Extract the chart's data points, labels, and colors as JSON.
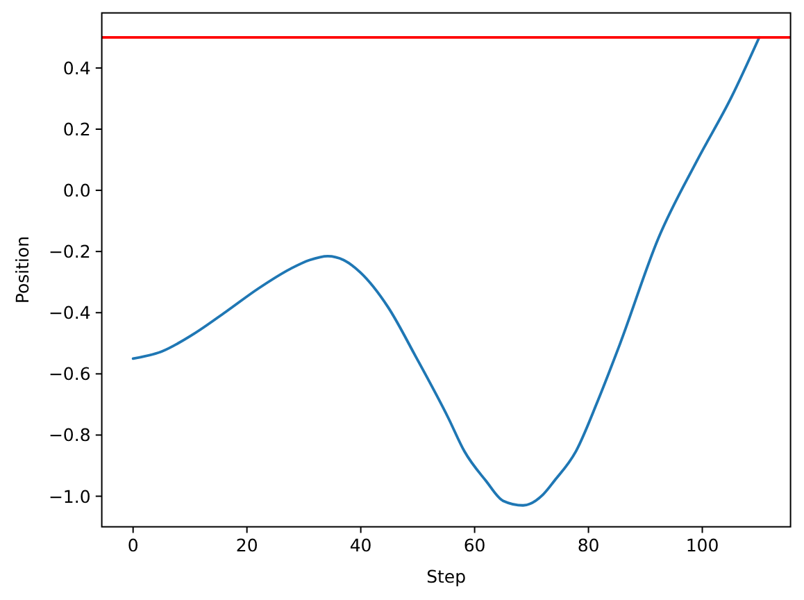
{
  "chart_data": {
    "type": "line",
    "xlabel": "Step",
    "ylabel": "Position",
    "xlim": [
      -5.5,
      115.5
    ],
    "ylim": [
      -1.1,
      0.58
    ],
    "xticks": [
      0,
      20,
      40,
      60,
      80,
      100
    ],
    "yticks": [
      {
        "value": -1.0,
        "label": "−1.0"
      },
      {
        "value": -0.8,
        "label": "−0.8"
      },
      {
        "value": -0.6,
        "label": "−0.6"
      },
      {
        "value": -0.4,
        "label": "−0.4"
      },
      {
        "value": -0.2,
        "label": "−0.2"
      },
      {
        "value": 0.0,
        "label": "0.0"
      },
      0.2,
      0.4
    ],
    "series": [
      {
        "color": "#1f77b4",
        "x": [
          0,
          5,
          10.6,
          16.3,
          22,
          27.7,
          31,
          34.2,
          37,
          39.9,
          44.8,
          49.7,
          55.4,
          58.2,
          62,
          65,
          68.5,
          72,
          74,
          77.8,
          81.6,
          85.5,
          92.3,
          99.1,
          105.1,
          110
        ],
        "values": [
          -0.55,
          -0.527,
          -0.47,
          -0.397,
          -0.321,
          -0.256,
          -0.228,
          -0.215,
          -0.228,
          -0.268,
          -0.382,
          -0.545,
          -0.745,
          -0.853,
          -0.95,
          -1.015,
          -1.03,
          -0.995,
          -0.95,
          -0.853,
          -0.69,
          -0.504,
          -0.156,
          0.098,
          0.304,
          0.5
        ]
      }
    ],
    "ref_lines": [
      {
        "axis": "y",
        "value": 0.5,
        "color": "#ff0000"
      }
    ]
  }
}
